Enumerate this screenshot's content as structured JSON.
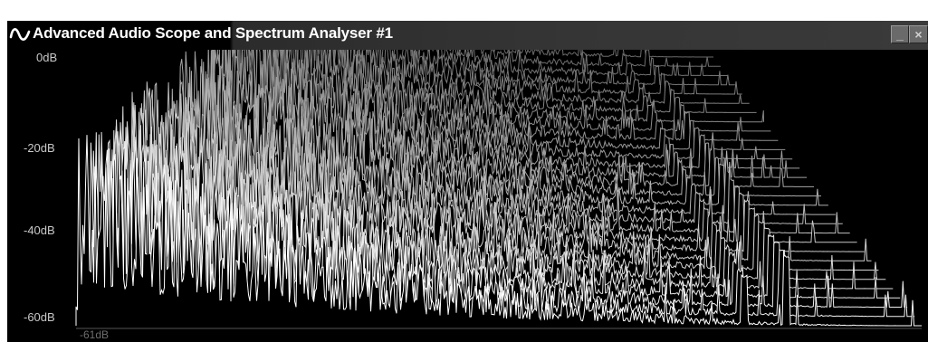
{
  "window": {
    "title": "Advanced Audio Scope and Spectrum Analyser #1",
    "icon": "sine-wave-icon",
    "minimize_label": "_",
    "close_label": "×"
  },
  "colors": {
    "background": "#000000",
    "trace_front": "#ffffff",
    "trace_back": "#6a6a6a",
    "axis_text": "#c8c8c8",
    "floor_text": "#6e6e6e"
  },
  "scale": {
    "y_labels": [
      "0dB",
      "-20dB",
      "-40dB",
      "-60dB"
    ],
    "floor_label": "-61dB"
  }
}
